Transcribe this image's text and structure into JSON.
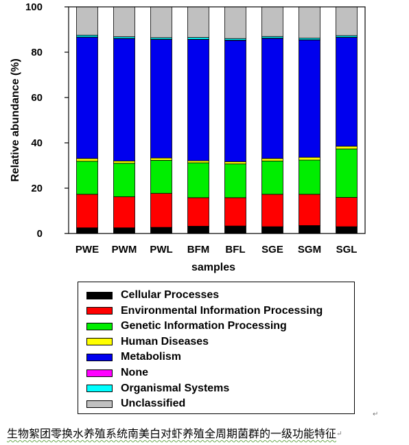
{
  "chart_data": {
    "type": "bar",
    "stacked": true,
    "xlabel": "samples",
    "ylabel": "Relative abundance (%)",
    "ylim": [
      0,
      100
    ],
    "yticks": [
      0,
      20,
      40,
      60,
      80,
      100
    ],
    "grid": false,
    "legend_position": "bottom",
    "categories": [
      "PWE",
      "PWM",
      "PWL",
      "BFM",
      "BFL",
      "SGE",
      "SGM",
      "SGL"
    ],
    "series": [
      {
        "name": "Cellular Processes",
        "color": "#000000",
        "values": [
          2.5,
          2.5,
          2.7,
          3.2,
          3.3,
          3.0,
          3.5,
          3.0
        ]
      },
      {
        "name": "Environmental Information Processing",
        "color": "#ff0000",
        "values": [
          14.8,
          13.7,
          15.0,
          12.6,
          12.5,
          14.3,
          13.8,
          12.9
        ]
      },
      {
        "name": "Genetic Information Processing",
        "color": "#00ee00",
        "values": [
          14.6,
          14.8,
          14.6,
          15.4,
          14.9,
          14.7,
          15.1,
          21.4
        ]
      },
      {
        "name": "Human Diseases",
        "color": "#ffff00",
        "values": [
          1.2,
          1.0,
          1.0,
          0.9,
          1.0,
          1.1,
          1.2,
          1.2
        ]
      },
      {
        "name": "Metabolism",
        "color": "#0000ee",
        "values": [
          53.5,
          54.0,
          52.3,
          53.5,
          53.5,
          53.0,
          51.8,
          48.0
        ]
      },
      {
        "name": "None",
        "color": "#ff00ff",
        "values": [
          0.1,
          0.1,
          0.1,
          0.1,
          0.1,
          0.1,
          0.1,
          0.1
        ]
      },
      {
        "name": "Organismal Systems",
        "color": "#00ffff",
        "values": [
          0.8,
          0.7,
          0.7,
          0.8,
          0.7,
          0.7,
          0.7,
          0.7
        ]
      },
      {
        "name": "Unclassified",
        "color": "#c0c0c0",
        "values": [
          12.5,
          13.2,
          13.6,
          13.5,
          14.0,
          13.1,
          13.8,
          12.7
        ]
      }
    ]
  },
  "caption": "生物絮团零换水养殖系统南美白对虾养殖全周期菌群的一级功能特征",
  "caption_mark": "↵",
  "stray_mark": "↵"
}
